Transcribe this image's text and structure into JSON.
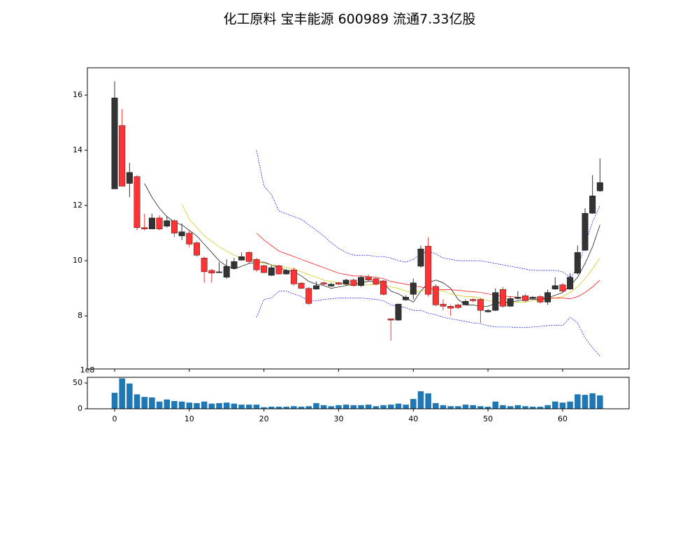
{
  "chart_data": [
    {
      "type": "candlestick",
      "title": "化工原料 宝丰能源 600989 流通7.33亿股",
      "x": [
        0,
        1,
        2,
        3,
        4,
        5,
        6,
        7,
        8,
        9,
        10,
        11,
        12,
        13,
        14,
        15,
        16,
        17,
        18,
        19,
        20,
        21,
        22,
        23,
        24,
        25,
        26,
        27,
        28,
        29,
        30,
        31,
        32,
        33,
        34,
        35,
        36,
        37,
        38,
        39,
        40,
        41,
        42,
        43,
        44,
        45,
        46,
        47,
        48,
        49,
        50,
        51,
        52,
        53,
        54,
        55,
        56,
        57,
        58,
        59,
        60,
        61,
        62,
        63,
        64,
        65
      ],
      "open": [
        12.6,
        14.9,
        12.8,
        13.05,
        11.2,
        11.15,
        11.55,
        11.25,
        11.45,
        10.9,
        11.0,
        10.65,
        10.1,
        9.65,
        9.57,
        9.4,
        9.72,
        10.02,
        10.3,
        10.05,
        9.82,
        9.47,
        9.82,
        9.52,
        9.67,
        9.19,
        9.0,
        8.97,
        9.2,
        9.08,
        9.2,
        9.15,
        9.3,
        9.1,
        9.42,
        9.35,
        9.27,
        7.9,
        7.85,
        8.58,
        8.78,
        9.8,
        10.53,
        9.07,
        8.43,
        8.35,
        8.4,
        8.4,
        8.6,
        8.6,
        8.15,
        8.2,
        8.96,
        8.35,
        8.63,
        8.73,
        8.63,
        8.7,
        8.5,
        8.97,
        9.13,
        8.97,
        9.55,
        10.38,
        11.72,
        12.53
      ],
      "close": [
        15.9,
        12.7,
        13.2,
        11.2,
        11.15,
        11.55,
        11.15,
        11.45,
        11.0,
        11.05,
        10.6,
        10.2,
        9.6,
        9.55,
        9.6,
        9.8,
        9.97,
        10.15,
        9.97,
        9.67,
        9.57,
        9.75,
        9.52,
        9.65,
        9.16,
        9.0,
        8.45,
        9.1,
        9.15,
        9.15,
        9.15,
        9.3,
        9.1,
        9.4,
        9.3,
        9.15,
        8.78,
        7.85,
        8.43,
        8.68,
        9.2,
        10.43,
        8.78,
        8.4,
        8.35,
        8.28,
        8.3,
        8.53,
        8.55,
        8.2,
        8.2,
        8.85,
        8.35,
        8.63,
        8.68,
        8.55,
        8.68,
        8.5,
        8.85,
        9.1,
        8.9,
        9.4,
        10.3,
        11.72,
        12.35,
        12.83
      ],
      "high": [
        16.5,
        15.5,
        13.55,
        13.1,
        11.7,
        11.7,
        11.65,
        11.6,
        11.5,
        11.35,
        11.1,
        10.7,
        10.15,
        9.7,
        9.95,
        10.05,
        10.1,
        10.3,
        10.35,
        10.1,
        9.85,
        9.85,
        9.85,
        9.7,
        9.75,
        9.22,
        9.05,
        9.25,
        9.25,
        9.2,
        9.22,
        9.35,
        9.35,
        9.45,
        9.5,
        9.4,
        9.3,
        7.9,
        8.45,
        8.75,
        9.35,
        10.55,
        10.85,
        9.15,
        8.6,
        8.4,
        8.45,
        8.6,
        8.65,
        8.65,
        8.25,
        9.0,
        9.05,
        8.7,
        8.9,
        8.8,
        8.72,
        8.75,
        8.95,
        9.4,
        9.2,
        9.55,
        10.55,
        11.9,
        13.1,
        13.7
      ],
      "low": [
        12.6,
        12.7,
        12.3,
        11.1,
        11.1,
        11.15,
        11.1,
        11.2,
        10.85,
        10.75,
        10.5,
        10.15,
        9.2,
        9.2,
        9.55,
        9.35,
        9.7,
        10.0,
        9.9,
        9.6,
        9.55,
        9.45,
        9.5,
        9.5,
        9.1,
        8.98,
        8.4,
        8.95,
        9.1,
        9.05,
        9.12,
        9.1,
        9.05,
        9.05,
        9.25,
        9.1,
        8.75,
        7.1,
        7.82,
        8.55,
        8.6,
        9.75,
        8.7,
        8.35,
        8.2,
        8.0,
        8.25,
        8.38,
        8.5,
        7.75,
        8.12,
        8.18,
        8.3,
        8.33,
        8.6,
        8.5,
        8.6,
        8.45,
        8.4,
        8.95,
        8.85,
        8.95,
        9.5,
        10.35,
        11.7,
        12.5
      ],
      "colorup": "#333333",
      "colordown": "#ff3333",
      "lines": [
        {
          "color": "#000000",
          "dashed": false,
          "values": [
            null,
            null,
            null,
            null,
            12.8,
            12.3,
            11.9,
            11.6,
            11.4,
            11.3,
            11.1,
            10.9,
            10.6,
            10.3,
            10.0,
            9.8,
            9.7,
            9.8,
            9.9,
            9.95,
            9.95,
            9.85,
            9.75,
            9.65,
            9.6,
            9.45,
            9.25,
            9.15,
            9.1,
            9.0,
            9.05,
            9.1,
            9.15,
            9.2,
            9.25,
            9.25,
            9.2,
            8.9,
            8.8,
            8.65,
            8.5,
            8.9,
            9.2,
            9.3,
            9.2,
            9.0,
            8.6,
            8.4,
            8.4,
            8.35,
            8.35,
            8.45,
            8.5,
            8.5,
            8.55,
            8.6,
            8.6,
            8.6,
            8.65,
            8.75,
            8.85,
            9.1,
            9.4,
            9.9,
            10.5,
            11.3
          ]
        },
        {
          "color": "#c8c800",
          "dashed": false,
          "values": [
            null,
            null,
            null,
            null,
            null,
            null,
            null,
            null,
            null,
            12.05,
            11.5,
            11.2,
            10.9,
            10.7,
            10.5,
            10.35,
            10.2,
            10.1,
            10.05,
            10.0,
            9.9,
            9.85,
            9.8,
            9.75,
            9.7,
            9.6,
            9.5,
            9.4,
            9.3,
            9.25,
            9.2,
            9.15,
            9.12,
            9.12,
            9.12,
            9.15,
            9.15,
            9.05,
            9.0,
            8.9,
            8.85,
            8.9,
            8.95,
            8.95,
            8.9,
            8.8,
            8.75,
            8.7,
            8.7,
            8.65,
            8.55,
            8.5,
            8.5,
            8.45,
            8.5,
            8.5,
            8.55,
            8.6,
            8.6,
            8.65,
            8.7,
            8.85,
            9.05,
            9.35,
            9.7,
            10.1
          ]
        },
        {
          "color": "#ff0000",
          "dashed": false,
          "values": [
            null,
            null,
            null,
            null,
            null,
            null,
            null,
            null,
            null,
            null,
            null,
            null,
            null,
            null,
            null,
            null,
            null,
            null,
            null,
            11.0,
            10.75,
            10.55,
            10.35,
            10.25,
            10.15,
            10.05,
            9.95,
            9.85,
            9.75,
            9.65,
            9.55,
            9.5,
            9.45,
            9.45,
            9.42,
            9.4,
            9.35,
            9.25,
            9.2,
            9.15,
            9.1,
            9.05,
            9.0,
            8.98,
            8.95,
            8.95,
            8.93,
            8.9,
            8.88,
            8.85,
            8.8,
            8.75,
            8.72,
            8.7,
            8.68,
            8.66,
            8.65,
            8.65,
            8.65,
            8.65,
            8.65,
            8.62,
            8.7,
            8.85,
            9.05,
            9.3
          ]
        },
        {
          "color": "#0000ff",
          "dashed": true,
          "values": [
            null,
            null,
            null,
            null,
            null,
            null,
            null,
            null,
            null,
            null,
            null,
            null,
            null,
            null,
            null,
            null,
            null,
            null,
            null,
            14.0,
            12.7,
            12.4,
            11.8,
            11.7,
            11.6,
            11.5,
            11.3,
            11.1,
            10.9,
            10.65,
            10.45,
            10.3,
            10.2,
            10.2,
            10.2,
            10.15,
            10.15,
            10.1,
            10.0,
            9.95,
            10.05,
            10.25,
            10.35,
            10.25,
            10.1,
            10.05,
            10.0,
            10.0,
            10.0,
            10.0,
            9.95,
            9.9,
            9.85,
            9.8,
            9.75,
            9.7,
            9.65,
            9.65,
            9.65,
            9.65,
            9.6,
            9.4,
            9.7,
            10.6,
            11.4,
            12.0
          ]
        },
        {
          "color": "#0000ff",
          "dashed": true,
          "values": [
            null,
            null,
            null,
            null,
            null,
            null,
            null,
            null,
            null,
            null,
            null,
            null,
            null,
            null,
            null,
            null,
            null,
            null,
            null,
            7.95,
            8.6,
            8.65,
            8.9,
            8.9,
            8.8,
            8.7,
            8.55,
            8.55,
            8.6,
            8.62,
            8.65,
            8.65,
            8.65,
            8.65,
            8.62,
            8.6,
            8.55,
            8.4,
            8.35,
            8.3,
            8.2,
            8.2,
            8.1,
            8.05,
            7.95,
            7.9,
            7.85,
            7.8,
            7.75,
            7.72,
            7.65,
            7.6,
            7.6,
            7.6,
            7.58,
            7.58,
            7.6,
            7.62,
            7.65,
            7.67,
            7.65,
            7.95,
            7.75,
            7.2,
            6.85,
            6.55
          ]
        }
      ],
      "xlim": [
        -3.65,
        68.9
      ],
      "xticks": [
        0,
        10,
        20,
        30,
        40,
        50,
        60
      ],
      "ylim": [
        6.08,
        16.99
      ],
      "yticks": [
        8,
        10,
        12,
        14,
        16
      ]
    },
    {
      "type": "bar",
      "values": [
        31,
        59,
        49,
        28,
        23,
        22,
        14,
        18,
        15,
        14,
        12,
        11,
        14,
        10,
        11,
        12,
        10,
        8,
        8,
        8,
        3,
        4,
        4,
        4,
        5,
        4,
        5,
        11,
        7,
        5,
        7,
        8,
        7,
        7,
        8,
        5,
        7,
        8,
        10,
        8,
        19,
        34,
        30,
        11,
        7,
        5,
        5,
        8,
        7,
        5,
        4,
        14,
        7,
        5,
        7,
        5,
        4,
        4,
        7,
        14,
        12,
        14,
        28,
        27,
        30,
        26
      ],
      "color": "#1f77b4",
      "offset_label": "1e8",
      "xlim": [
        -3.65,
        68.9
      ],
      "xticks": [
        0,
        10,
        20,
        30,
        40,
        50,
        60
      ],
      "ylim": [
        0,
        61
      ],
      "yticks": [
        0,
        50
      ]
    }
  ]
}
